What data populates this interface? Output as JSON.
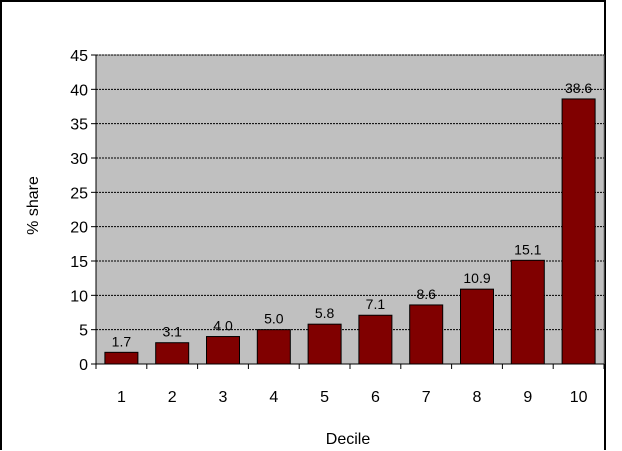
{
  "chart_data": {
    "type": "bar",
    "categories": [
      "1",
      "2",
      "3",
      "4",
      "5",
      "6",
      "7",
      "8",
      "9",
      "10"
    ],
    "values": [
      1.7,
      3.1,
      4.0,
      5.0,
      5.8,
      7.1,
      8.6,
      10.9,
      15.1,
      38.6
    ],
    "data_labels": [
      "1.7",
      "3.1",
      "4.0",
      "5.0",
      "5.8",
      "7.1",
      "8.6",
      "10.9",
      "15.1",
      "38.6"
    ],
    "xlabel": "Decile",
    "ylabel": "% share",
    "ylim": [
      0,
      45
    ],
    "yticks": [
      0,
      5,
      10,
      15,
      20,
      25,
      30,
      35,
      40,
      45
    ],
    "grid": "horizontal dashed",
    "colors": {
      "bar": "#800000",
      "plot_background": "#c0c0c0"
    }
  }
}
